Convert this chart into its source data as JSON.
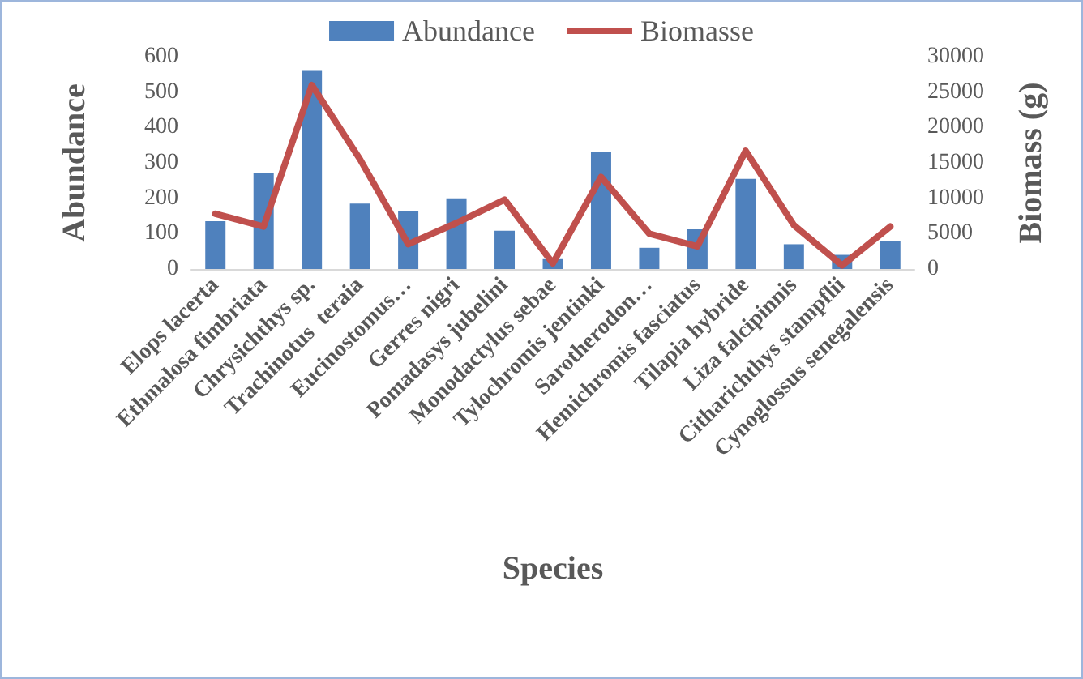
{
  "chart_data": {
    "type": "bar",
    "xlabel": "Species",
    "ylabel": "Abundance",
    "y2label": "Biomass (g)",
    "categories": [
      "Elops lacerta",
      "Ethmalosa fimbriata",
      "Chrysichthys sp.",
      "Trachinotus  teraia",
      "Eucinostomus…",
      "Gerres nigri",
      "Pomadasys jubelini",
      "Monodactylus sebae",
      "Tylochromis jentinki",
      "Sarotherodon…",
      "Hemichromis fasciatus",
      "Tilapia hybride",
      "Liza falcipinnis",
      "Citharichthys stampflii",
      "Cynoglossus senegalensis"
    ],
    "series": [
      {
        "name": "Abundance",
        "color": "#4f81bd",
        "values": [
          135,
          270,
          560,
          185,
          165,
          200,
          108,
          28,
          330,
          60,
          112,
          255,
          70,
          40,
          80
        ]
      },
      {
        "name": "Biomasse",
        "type": "line",
        "axis": "y2",
        "color": "#c0504d",
        "marker": "none",
        "line_style": "solid",
        "values": [
          7800,
          6000,
          26000,
          15500,
          3500,
          6500,
          9800,
          800,
          13000,
          5000,
          3200,
          16700,
          6200,
          500,
          6000
        ]
      }
    ],
    "ylim": [
      0,
      600
    ],
    "yticks": [
      0,
      100,
      200,
      300,
      400,
      500,
      600
    ],
    "y2lim": [
      0,
      30000
    ],
    "y2ticks": [
      0,
      5000,
      10000,
      15000,
      20000,
      25000,
      30000
    ],
    "grid": false,
    "legend": "top"
  }
}
